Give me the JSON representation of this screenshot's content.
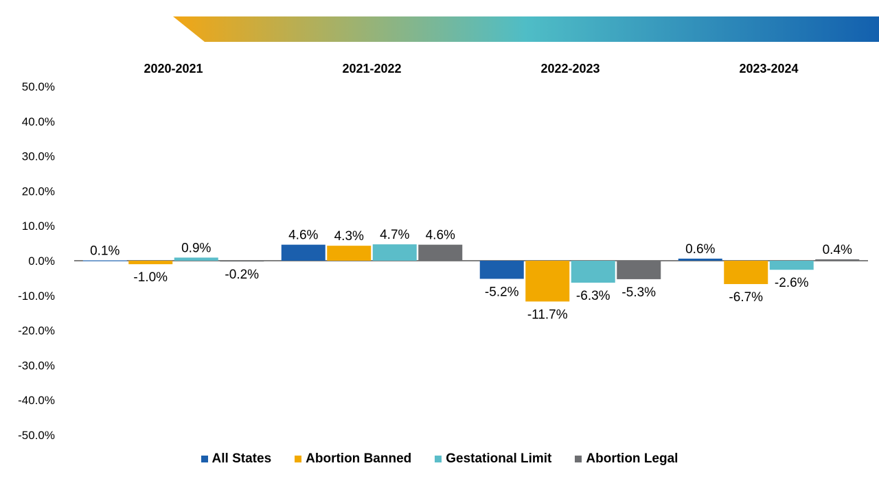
{
  "colors": {
    "banner_start": "#F2A614",
    "banner_mid": "#4FBDC6",
    "banner_end": "#1360AE"
  },
  "chart_data": {
    "type": "bar",
    "categories": [
      "2020-2021",
      "2021-2022",
      "2022-2023",
      "2023-2024"
    ],
    "series": [
      {
        "name": "All States",
        "color": "#1B5FAD",
        "values": [
          0.1,
          4.6,
          -5.2,
          0.6
        ],
        "labels": [
          "0.1%",
          "4.6%",
          "-5.2%",
          "0.6%"
        ]
      },
      {
        "name": "Abortion Banned",
        "color": "#F2A900",
        "values": [
          -1.0,
          4.3,
          -11.7,
          -6.7
        ],
        "labels": [
          "-1.0%",
          "4.3%",
          "-11.7%",
          "-6.7%"
        ]
      },
      {
        "name": "Gestational Limit",
        "color": "#5BBDC9",
        "values": [
          0.9,
          4.7,
          -6.3,
          -2.6
        ],
        "labels": [
          "0.9%",
          "4.7%",
          "-6.3%",
          "-2.6%"
        ]
      },
      {
        "name": "Abortion Legal",
        "color": "#6D6E71",
        "values": [
          -0.2,
          4.6,
          -5.3,
          0.4
        ],
        "labels": [
          "-0.2%",
          "4.6%",
          "-5.3%",
          "0.4%"
        ]
      }
    ],
    "ylim": [
      -50,
      50
    ],
    "yticks": [
      50,
      40,
      30,
      20,
      10,
      0,
      -10,
      -20,
      -30,
      -40,
      -50
    ],
    "ytick_labels": [
      "50.0%",
      "40.0%",
      "30.0%",
      "20.0%",
      "10.0%",
      "0.0%",
      "-10.0%",
      "-20.0%",
      "-30.0%",
      "-40.0%",
      "-50.0%"
    ],
    "grid": false,
    "legend_position": "bottom"
  }
}
